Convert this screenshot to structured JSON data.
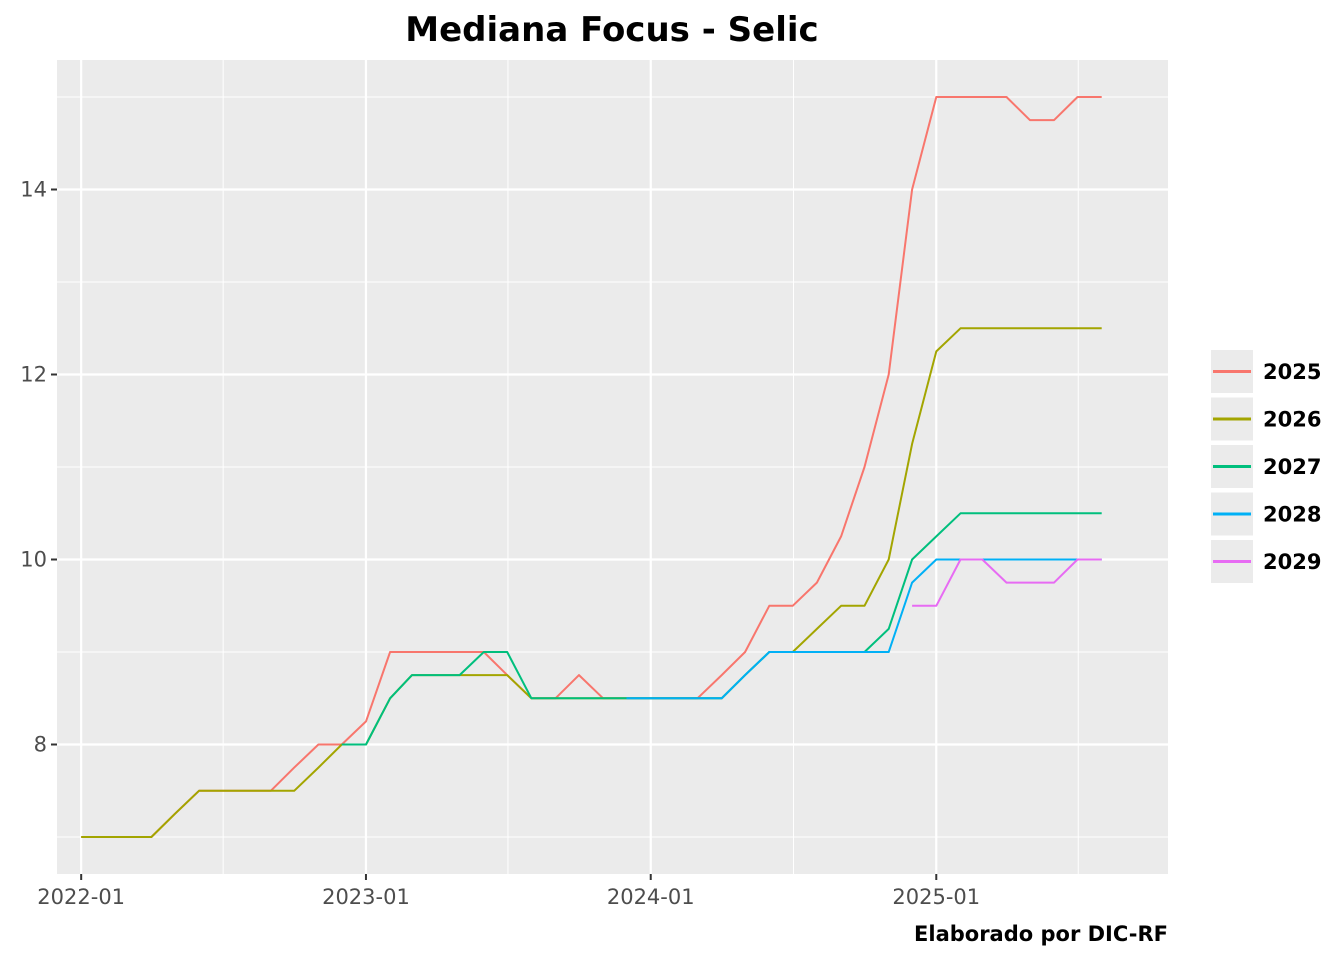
{
  "chart_data": {
    "type": "line",
    "title": "Mediana Focus - Selic",
    "caption": "Elaborado por DIC-RF",
    "xlabel": "",
    "ylabel": "",
    "x_ticks": [
      "2022-01",
      "2023-01",
      "2024-01",
      "2025-01"
    ],
    "y_ticks": [
      "8",
      "10",
      "12",
      "14"
    ],
    "xlim": [
      "2021-12-01",
      "2025-10-25"
    ],
    "ylim": [
      6.6,
      15.4
    ],
    "grid": true,
    "legend": "right",
    "series": [
      {
        "name": "2025",
        "color": "#F8766D",
        "x": [
          "2022-01-01",
          "2022-02-01",
          "2022-03-01",
          "2022-04-01",
          "2022-05-01",
          "2022-06-01",
          "2022-07-01",
          "2022-08-01",
          "2022-09-01",
          "2022-10-01",
          "2022-11-01",
          "2022-12-01",
          "2023-01-01",
          "2023-02-01",
          "2023-03-01",
          "2023-04-01",
          "2023-05-01",
          "2023-06-01",
          "2023-07-01",
          "2023-08-01",
          "2023-09-01",
          "2023-10-01",
          "2023-11-01",
          "2023-12-01",
          "2024-01-01",
          "2024-02-01",
          "2024-03-01",
          "2024-04-01",
          "2024-05-01",
          "2024-06-01",
          "2024-07-01",
          "2024-08-01",
          "2024-09-01",
          "2024-10-01",
          "2024-11-01",
          "2024-12-01",
          "2025-01-01",
          "2025-02-01",
          "2025-03-01",
          "2025-04-01",
          "2025-05-01",
          "2025-06-01",
          "2025-07-01",
          "2025-08-01"
        ],
        "values": [
          7.0,
          7.0,
          7.0,
          7.0,
          7.25,
          7.5,
          7.5,
          7.5,
          7.5,
          7.75,
          8.0,
          8.0,
          8.25,
          9.0,
          9.0,
          9.0,
          9.0,
          9.0,
          8.75,
          8.5,
          8.5,
          8.75,
          8.5,
          8.5,
          8.5,
          8.5,
          8.5,
          8.75,
          9.0,
          9.5,
          9.5,
          9.75,
          10.25,
          11.0,
          12.0,
          14.0,
          15.0,
          15.0,
          15.0,
          15.0,
          14.75,
          14.75,
          15.0,
          15.0
        ]
      },
      {
        "name": "2026",
        "color": "#A3A500",
        "x": [
          "2022-01-01",
          "2022-02-01",
          "2022-03-01",
          "2022-04-01",
          "2022-05-01",
          "2022-06-01",
          "2022-07-01",
          "2022-08-01",
          "2022-09-01",
          "2022-10-01",
          "2022-11-01",
          "2022-12-01",
          "2023-01-01",
          "2023-02-01",
          "2023-03-01",
          "2023-04-01",
          "2023-05-01",
          "2023-06-01",
          "2023-07-01",
          "2023-08-01",
          "2023-09-01",
          "2023-10-01",
          "2023-11-01",
          "2023-12-01",
          "2024-01-01",
          "2024-02-01",
          "2024-03-01",
          "2024-04-01",
          "2024-05-01",
          "2024-06-01",
          "2024-07-01",
          "2024-08-01",
          "2024-09-01",
          "2024-10-01",
          "2024-11-01",
          "2024-12-01",
          "2025-01-01",
          "2025-02-01",
          "2025-03-01",
          "2025-04-01",
          "2025-05-01",
          "2025-06-01",
          "2025-07-01",
          "2025-08-01"
        ],
        "values": [
          7.0,
          7.0,
          7.0,
          7.0,
          7.25,
          7.5,
          7.5,
          7.5,
          7.5,
          7.5,
          7.75,
          8.0,
          8.0,
          8.5,
          8.75,
          8.75,
          8.75,
          8.75,
          8.75,
          8.5,
          8.5,
          8.5,
          8.5,
          8.5,
          8.5,
          8.5,
          8.5,
          8.5,
          8.75,
          9.0,
          9.0,
          9.25,
          9.5,
          9.5,
          10.0,
          11.25,
          12.25,
          12.5,
          12.5,
          12.5,
          12.5,
          12.5,
          12.5,
          12.5
        ]
      },
      {
        "name": "2027",
        "color": "#00BF7D",
        "x": [
          "2022-12-01",
          "2023-01-01",
          "2023-02-01",
          "2023-03-01",
          "2023-04-01",
          "2023-05-01",
          "2023-06-01",
          "2023-07-01",
          "2023-08-01",
          "2023-09-01",
          "2023-10-01",
          "2023-11-01",
          "2023-12-01",
          "2024-01-01",
          "2024-02-01",
          "2024-03-01",
          "2024-04-01",
          "2024-05-01",
          "2024-06-01",
          "2024-07-01",
          "2024-08-01",
          "2024-09-01",
          "2024-10-01",
          "2024-11-01",
          "2024-12-01",
          "2025-01-01",
          "2025-02-01",
          "2025-03-01",
          "2025-04-01",
          "2025-05-01",
          "2025-06-01",
          "2025-07-01",
          "2025-08-01"
        ],
        "values": [
          8.0,
          8.0,
          8.5,
          8.75,
          8.75,
          8.75,
          9.0,
          9.0,
          8.5,
          8.5,
          8.5,
          8.5,
          8.5,
          8.5,
          8.5,
          8.5,
          8.5,
          8.75,
          9.0,
          9.0,
          9.0,
          9.0,
          9.0,
          9.25,
          10.0,
          10.25,
          10.5,
          10.5,
          10.5,
          10.5,
          10.5,
          10.5,
          10.5
        ]
      },
      {
        "name": "2028",
        "color": "#00B0F6",
        "x": [
          "2023-12-01",
          "2024-01-01",
          "2024-02-01",
          "2024-03-01",
          "2024-04-01",
          "2024-05-01",
          "2024-06-01",
          "2024-07-01",
          "2024-08-01",
          "2024-09-01",
          "2024-10-01",
          "2024-11-01",
          "2024-12-01",
          "2025-01-01",
          "2025-02-01",
          "2025-03-01",
          "2025-04-01",
          "2025-05-01",
          "2025-06-01",
          "2025-07-01",
          "2025-08-01"
        ],
        "values": [
          8.5,
          8.5,
          8.5,
          8.5,
          8.5,
          8.75,
          9.0,
          9.0,
          9.0,
          9.0,
          9.0,
          9.0,
          9.75,
          10.0,
          10.0,
          10.0,
          10.0,
          10.0,
          10.0,
          10.0,
          10.0
        ]
      },
      {
        "name": "2029",
        "color": "#E76BF3",
        "x": [
          "2024-12-01",
          "2025-01-01",
          "2025-02-01",
          "2025-03-01",
          "2025-04-01",
          "2025-05-01",
          "2025-06-01",
          "2025-07-01",
          "2025-08-01"
        ],
        "values": [
          9.5,
          9.5,
          10.0,
          10.0,
          9.75,
          9.75,
          9.75,
          10.0,
          10.0
        ]
      }
    ]
  }
}
